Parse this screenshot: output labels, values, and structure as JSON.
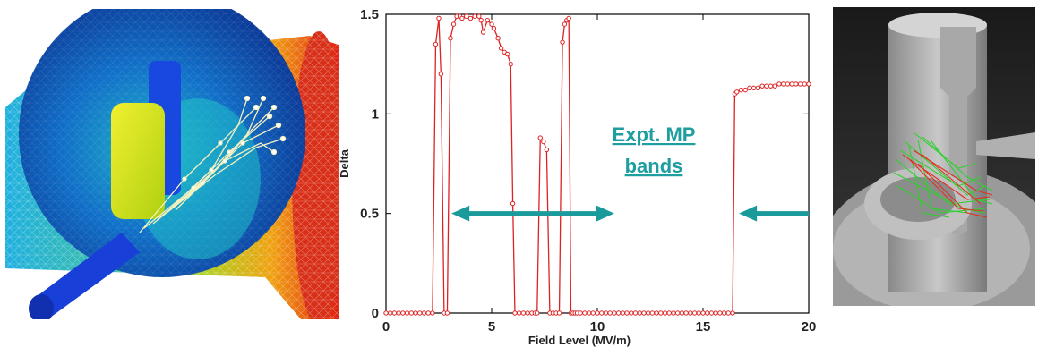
{
  "left_image": {
    "label": "simulation-render-cavity-coupler"
  },
  "right_image": {
    "label": "simulation-render-coupler-trajectories"
  },
  "colors": {
    "curve": "#dd2222",
    "arrow": "#1a9a9a",
    "annotation": "#1e9ea0"
  },
  "chart_data": {
    "type": "line",
    "xlabel": "Field Level (MV/m)",
    "ylabel": "Delta",
    "xlim": [
      0,
      20
    ],
    "ylim": [
      0,
      1.5
    ],
    "xticks": [
      "0",
      "5",
      "10",
      "15",
      "20"
    ],
    "yticks": [
      "0",
      "0.5",
      "1",
      "1.5"
    ],
    "grid": false,
    "series": [
      {
        "marker": "circle",
        "x": [
          0,
          0.2,
          0.4,
          0.6,
          0.8,
          1.0,
          1.2,
          1.4,
          1.6,
          1.8,
          2.0,
          2.2,
          2.35,
          2.5,
          2.6,
          2.75,
          2.9,
          3.05,
          3.2,
          3.35,
          3.5,
          3.6,
          3.8,
          4.0,
          4.2,
          4.4,
          4.5,
          4.6,
          4.8,
          5.0,
          5.1,
          5.3,
          5.45,
          5.6,
          5.75,
          5.9,
          6.0,
          6.1,
          6.3,
          6.5,
          6.7,
          6.9,
          7.05,
          7.15,
          7.3,
          7.45,
          7.6,
          7.75,
          7.9,
          8.05,
          8.2,
          8.35,
          8.45,
          8.55,
          8.65,
          8.75,
          8.85,
          8.95,
          9.05,
          9.2,
          9.4,
          9.6,
          9.8,
          10.0,
          10.2,
          10.4,
          10.6,
          10.8,
          11.0,
          11.2,
          11.4,
          11.6,
          11.8,
          12.0,
          12.2,
          12.4,
          12.6,
          12.8,
          13.0,
          13.2,
          13.4,
          13.6,
          13.8,
          14.0,
          14.2,
          14.4,
          14.6,
          14.8,
          15.0,
          15.2,
          15.4,
          15.6,
          15.8,
          16.0,
          16.2,
          16.4,
          16.5,
          16.6,
          16.8,
          17.0,
          17.2,
          17.4,
          17.6,
          17.8,
          18.0,
          18.2,
          18.4,
          18.6,
          18.8,
          19.0,
          19.2,
          19.4,
          19.6,
          19.8,
          20.0
        ],
        "y": [
          0,
          0,
          0,
          0,
          0,
          0,
          0,
          0,
          0,
          0,
          0,
          0,
          1.35,
          1.48,
          1.2,
          0,
          0,
          1.38,
          1.45,
          1.49,
          1.49,
          1.48,
          1.49,
          1.48,
          1.49,
          1.49,
          1.47,
          1.41,
          1.47,
          1.45,
          1.43,
          1.38,
          1.33,
          1.31,
          1.3,
          1.25,
          0.55,
          0,
          0,
          0,
          0,
          0,
          0,
          0,
          0.88,
          0.86,
          0.82,
          0,
          0,
          0,
          0,
          1.36,
          1.45,
          1.47,
          1.48,
          0,
          0,
          0,
          0,
          0,
          0,
          0,
          0,
          0,
          0,
          0,
          0,
          0,
          0,
          0,
          0,
          0,
          0,
          0,
          0,
          0,
          0,
          0,
          0,
          0,
          0,
          0,
          0,
          0,
          0,
          0,
          0,
          0,
          0,
          0,
          0,
          0,
          0,
          0,
          0,
          0,
          1.1,
          1.11,
          1.12,
          1.12,
          1.13,
          1.13,
          1.13,
          1.14,
          1.14,
          1.14,
          1.14,
          1.15,
          1.15,
          1.15,
          1.15,
          1.15,
          1.15,
          1.15,
          1.15
        ],
        "y_display": "clip"
      }
    ],
    "annotations": [
      {
        "text_line1": "Expt. MP",
        "text_line2": "bands"
      }
    ],
    "arrows": [
      {
        "from_x": 3.1,
        "to_x": 10.8,
        "y": 0.5,
        "heads": "both"
      },
      {
        "from_x": 20.0,
        "to_x": 16.7,
        "y": 0.5,
        "heads": "end"
      }
    ]
  }
}
